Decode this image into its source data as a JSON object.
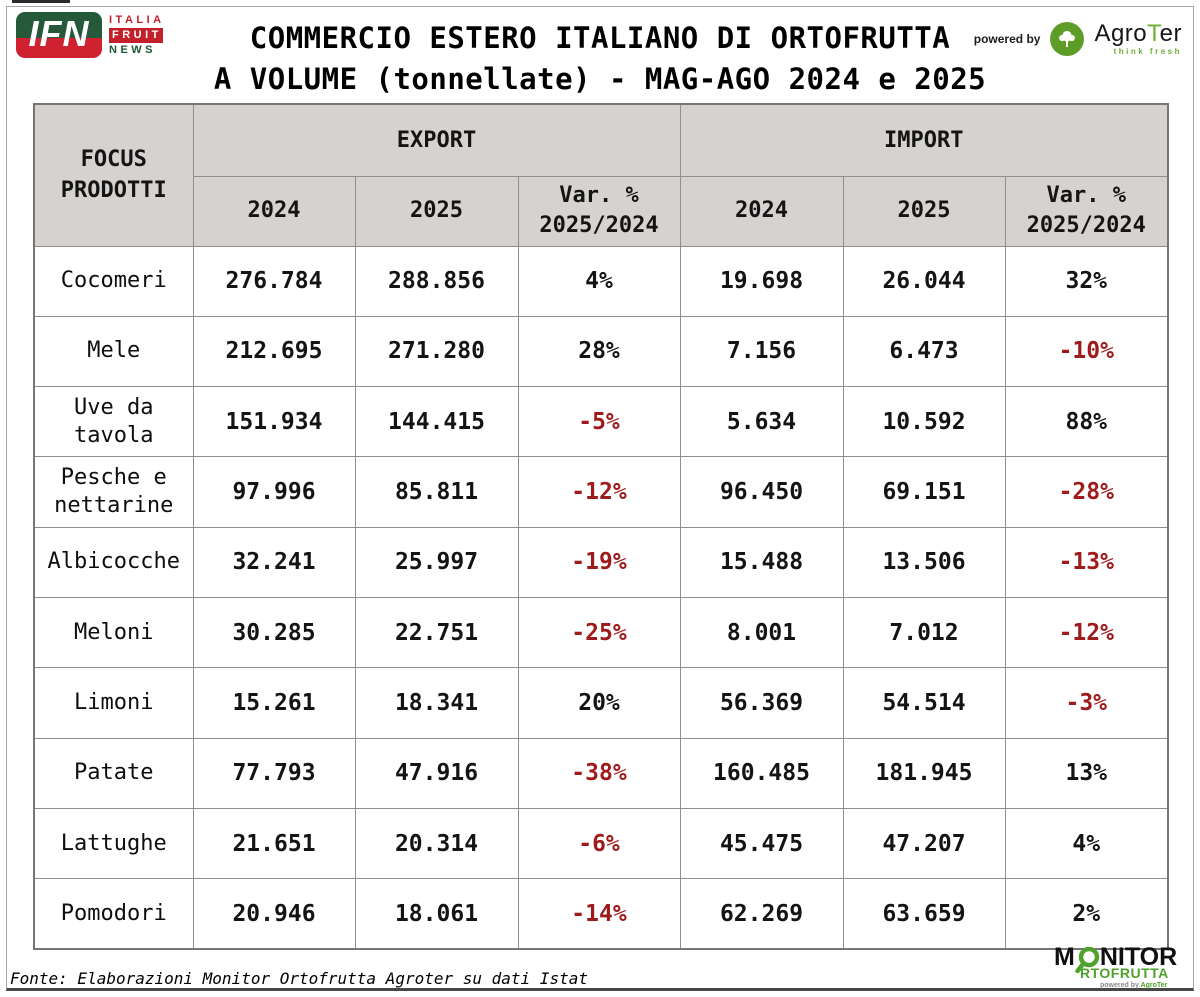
{
  "page": {
    "title_line1": "COMMERCIO ESTERO ITALIANO DI ORTOFRUTTA",
    "title_line2": "A VOLUME (tonnellate) - MAG-AGO 2024 e 2025",
    "footer": "Fonte: Elaborazioni Monitor Ortofrutta Agroter su dati Istat"
  },
  "branding": {
    "ifn": {
      "acronym": "IFN",
      "italia": "ITALIA",
      "fruit": "FRUIT",
      "news": "NEWS"
    },
    "powered_by": "powered by",
    "agroter": {
      "prefix": "Agro",
      "t": "T",
      "suffix": "er",
      "tagline": "think fresh"
    },
    "monitor": {
      "m": "M",
      "nitor": "NITOR",
      "rtofrutta": "RTOFRUTTA",
      "powered_small": "powered by",
      "agroter_small": "AgroTer"
    }
  },
  "table": {
    "corner_line1": "FOCUS",
    "corner_line2": "PRODOTTI",
    "export_label": "EXPORT",
    "import_label": "IMPORT",
    "year_2024": "2024",
    "year_2025": "2025",
    "var_line1": "Var. %",
    "var_line2": "2025/2024"
  },
  "colors": {
    "negative_red": "#9e1b1b",
    "header_gray": "#d5d2d0",
    "grid_gray": "#8f8f8f",
    "ifn_green": "#26593a",
    "ifn_red": "#cf2130",
    "agroter_green": "#5d9c27",
    "monitor_green": "#4ea22b"
  },
  "chart_data": {
    "type": "table",
    "title": "COMMERCIO ESTERO ITALIANO DI ORTOFRUTTA A VOLUME (tonnellate) - MAG-AGO 2024 e 2025",
    "columns": [
      "FOCUS PRODOTTI",
      "EXPORT 2024",
      "EXPORT 2025",
      "EXPORT Var. % 2025/2024",
      "IMPORT 2024",
      "IMPORT 2025",
      "IMPORT Var. % 2025/2024"
    ],
    "rows": [
      [
        "Cocomeri",
        "276.784",
        "288.856",
        "4%",
        "19.698",
        "26.044",
        "32%"
      ],
      [
        "Mele",
        "212.695",
        "271.280",
        "28%",
        "7.156",
        "6.473",
        "-10%"
      ],
      [
        "Uve da tavola",
        "151.934",
        "144.415",
        "-5%",
        "5.634",
        "10.592",
        "88%"
      ],
      [
        "Pesche e nettarine",
        "97.996",
        "85.811",
        "-12%",
        "96.450",
        "69.151",
        "-28%"
      ],
      [
        "Albicocche",
        "32.241",
        "25.997",
        "-19%",
        "15.488",
        "13.506",
        "-13%"
      ],
      [
        "Meloni",
        "30.285",
        "22.751",
        "-25%",
        "8.001",
        "7.012",
        "-12%"
      ],
      [
        "Limoni",
        "15.261",
        "18.341",
        "20%",
        "56.369",
        "54.514",
        "-3%"
      ],
      [
        "Patate",
        "77.793",
        "47.916",
        "-38%",
        "160.485",
        "181.945",
        "13%"
      ],
      [
        "Lattughe",
        "21.651",
        "20.314",
        "-6%",
        "45.475",
        "47.207",
        "4%"
      ],
      [
        "Pomodori",
        "20.946",
        "18.061",
        "-14%",
        "62.269",
        "63.659",
        "2%"
      ]
    ],
    "source": "Fonte: Elaborazioni Monitor Ortofrutta Agroter su dati Istat"
  }
}
